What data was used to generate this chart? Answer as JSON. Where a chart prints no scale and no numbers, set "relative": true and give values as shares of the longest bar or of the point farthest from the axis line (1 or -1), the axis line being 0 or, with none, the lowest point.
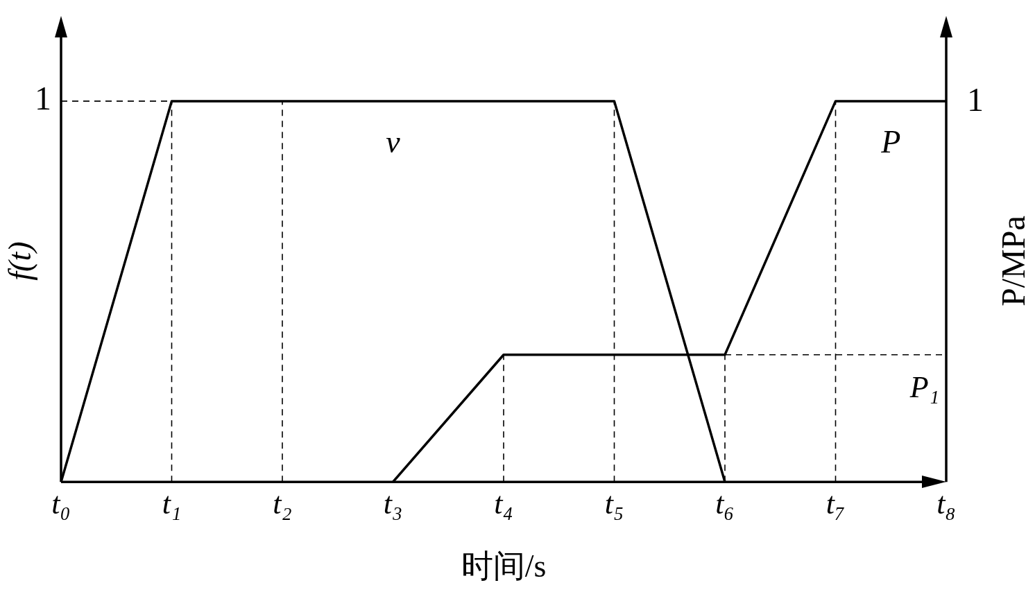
{
  "chart_data": {
    "type": "line",
    "relative": true,
    "xlabel": "时间/s",
    "ylabel": "f(t)",
    "y2label": "P/MPa",
    "categories": [
      "t₀",
      "t₁",
      "t₂",
      "t₃",
      "t₄",
      "t₅",
      "t₆",
      "t₇",
      "t₈"
    ],
    "series": [
      {
        "name": "v",
        "color": "#000000",
        "values": [
          0,
          1,
          1,
          1,
          1,
          1,
          0,
          null,
          null
        ]
      },
      {
        "name": "P",
        "color": "#000000",
        "values": [
          null,
          null,
          null,
          0,
          0.334,
          0.334,
          0.334,
          1,
          1
        ]
      }
    ],
    "ref_lines": [
      {
        "axis": "y",
        "value": 1,
        "label": "1",
        "line_style": "dashed"
      },
      {
        "axis": "y",
        "value": 0.334,
        "label": "P₁",
        "line_style": "dashed"
      },
      {
        "axis": "x",
        "value": "t₁",
        "line_style": "dashed"
      },
      {
        "axis": "x",
        "value": "t₂",
        "line_style": "dashed"
      },
      {
        "axis": "x",
        "value": "t₄",
        "line_style": "dashed"
      },
      {
        "axis": "x",
        "value": "t₅",
        "line_style": "dashed"
      },
      {
        "axis": "x",
        "value": "t₆",
        "line_style": "dashed"
      },
      {
        "axis": "x",
        "value": "t₇",
        "line_style": "dashed"
      }
    ],
    "annotations": [
      "1"
    ],
    "legend": false,
    "grid": false,
    "marker": "none",
    "line_style": "solid"
  }
}
